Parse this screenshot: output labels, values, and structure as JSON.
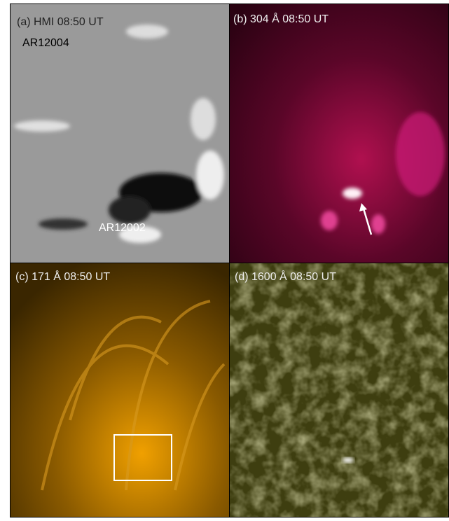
{
  "panels": [
    {
      "label": "(a) HMI  08:50 UT",
      "annotations": [
        "AR12004",
        "AR12002"
      ]
    },
    {
      "label": "(b) 304 Å 08:50 UT"
    },
    {
      "label": "(c) 171 Å 08:50 UT"
    },
    {
      "label": "(d) 1600 Å 08:50 UT"
    }
  ]
}
